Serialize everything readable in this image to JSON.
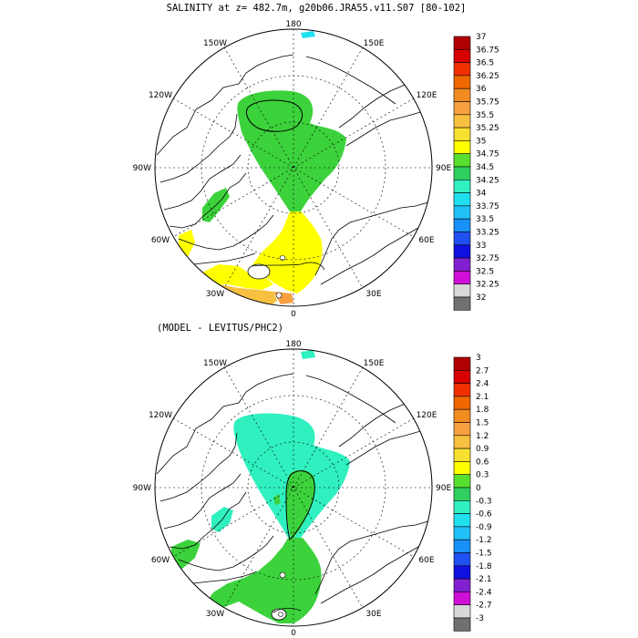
{
  "top_panel": {
    "title": "SALINITY at z= 482.7m, g20b06.JRA55.v11.S07 [80-102]",
    "longitude_labels": {
      "top": "180",
      "bottom": "0",
      "left": "90W",
      "right": "90E",
      "upper_left_1": "150W",
      "upper_left_2": "120W",
      "lower_left_1": "60W",
      "lower_left_2": "30W",
      "upper_right_1": "150E",
      "upper_right_2": "120E",
      "lower_right_1": "60E",
      "lower_right_2": "30E"
    },
    "colorbar": {
      "labels": [
        "37",
        "36.75",
        "36.5",
        "36.25",
        "36",
        "35.75",
        "35.5",
        "35.25",
        "35",
        "34.75",
        "34.5",
        "34.25",
        "34",
        "33.75",
        "33.5",
        "33.25",
        "33",
        "32.75",
        "32.5",
        "32.25",
        "32"
      ],
      "colors": [
        "#b00000",
        "#d80000",
        "#f03000",
        "#f06800",
        "#f08c20",
        "#f8a040",
        "#f8c040",
        "#f8e030",
        "#ffff00",
        "#58e030",
        "#30d060",
        "#30f0c0",
        "#20e0f0",
        "#20c0f8",
        "#1890f8",
        "#2050f0",
        "#1010e0",
        "#8020d0",
        "#d010d8",
        "#d8d8d8",
        "#707070"
      ]
    },
    "map_colors": {
      "green": "#3cd23c",
      "yellow": "#ffff00",
      "orange": "#f8c040",
      "cyan": "#20e0f0"
    }
  },
  "bottom_panel": {
    "title": "(MODEL - LEVITUS/PHC2)",
    "longitude_labels": {
      "top": "180",
      "bottom": "0",
      "left": "90W",
      "right": "90E",
      "upper_left_1": "150W",
      "upper_left_2": "120W",
      "lower_left_1": "60W",
      "lower_left_2": "30W",
      "upper_right_1": "150E",
      "upper_right_2": "120E",
      "lower_right_1": "60E",
      "lower_right_2": "30E"
    },
    "colorbar": {
      "labels": [
        "3",
        "2.7",
        "2.4",
        "2.1",
        "1.8",
        "1.5",
        "1.2",
        "0.9",
        "0.6",
        "0.3",
        "0",
        "-0.3",
        "-0.6",
        "-0.9",
        "-1.2",
        "-1.5",
        "-1.8",
        "-2.1",
        "-2.4",
        "-2.7",
        "-3"
      ],
      "colors": [
        "#b00000",
        "#d80000",
        "#f03000",
        "#f06800",
        "#f08c20",
        "#f8a040",
        "#f8c040",
        "#f8e030",
        "#ffff00",
        "#58e030",
        "#30d060",
        "#30f0c0",
        "#20e0f0",
        "#20c0f8",
        "#1890f8",
        "#2050f0",
        "#1010e0",
        "#8020d0",
        "#d010d8",
        "#d8d8d8",
        "#707070"
      ]
    },
    "map_colors": {
      "cyan": "#30f0c0",
      "green": "#3cd23c",
      "white_patch": "#ffffff"
    }
  }
}
